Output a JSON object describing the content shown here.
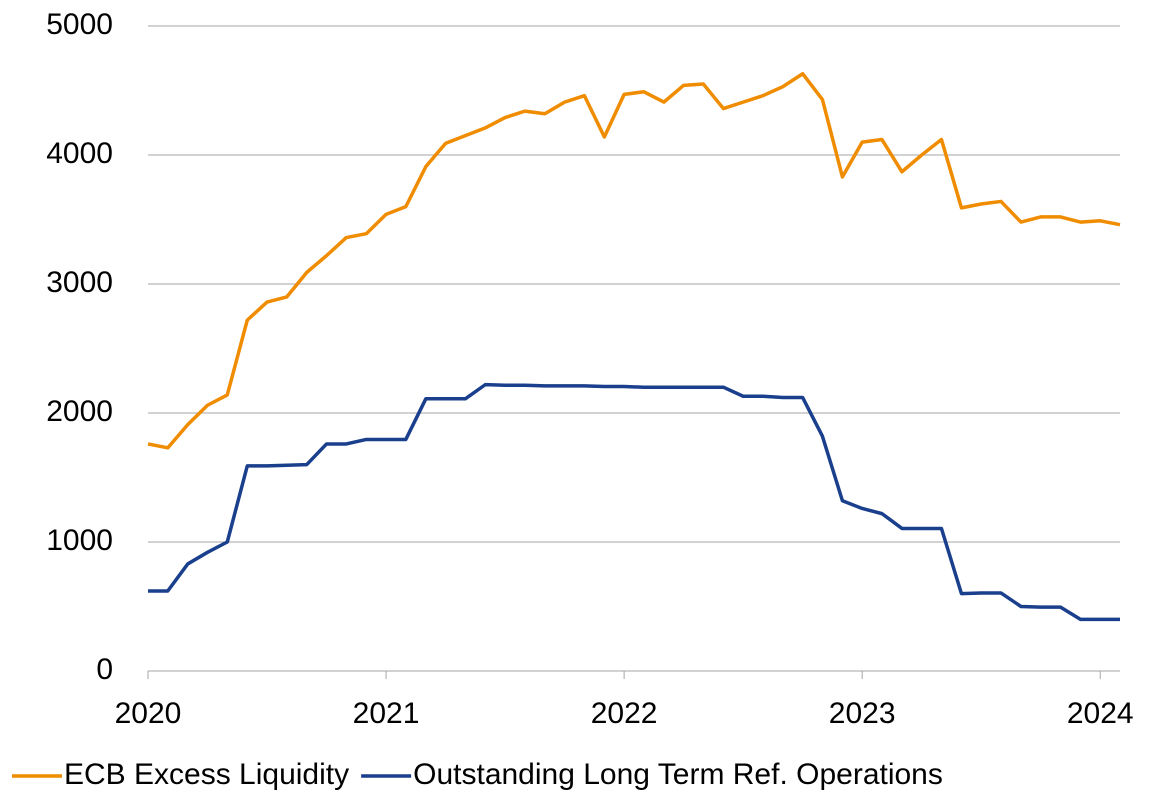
{
  "chart_data": {
    "type": "line",
    "x": [
      2020,
      2020.083,
      2020.167,
      2020.25,
      2020.333,
      2020.417,
      2020.5,
      2020.583,
      2020.667,
      2020.75,
      2020.833,
      2020.917,
      2021,
      2021.083,
      2021.167,
      2021.25,
      2021.333,
      2021.417,
      2021.5,
      2021.583,
      2021.667,
      2021.75,
      2021.833,
      2021.917,
      2022,
      2022.083,
      2022.167,
      2022.25,
      2022.333,
      2022.417,
      2022.5,
      2022.583,
      2022.667,
      2022.75,
      2022.833,
      2022.917,
      2023,
      2023.083,
      2023.167,
      2023.25,
      2023.333,
      2023.417,
      2023.5,
      2023.583,
      2023.667,
      2023.75,
      2023.833,
      2023.917,
      2024,
      2024.083
    ],
    "series": [
      {
        "name": "ECB Excess Liquidity",
        "color": "#f08c00",
        "values": [
          1760,
          1730,
          1910,
          2060,
          2140,
          2720,
          2860,
          2900,
          3090,
          3220,
          3360,
          3390,
          3540,
          3600,
          3910,
          4090,
          4150,
          4210,
          4290,
          4340,
          4320,
          4410,
          4460,
          4140,
          4470,
          4490,
          4410,
          4540,
          4550,
          4360,
          4410,
          4460,
          4530,
          4630,
          4430,
          3830,
          4100,
          4120,
          3870,
          4000,
          4120,
          3590,
          3620,
          3640,
          3480,
          3520,
          3520,
          3480,
          3490,
          3460
        ]
      },
      {
        "name": "Outstanding Long Term Ref. Operations",
        "color": "#1a3f8c",
        "values": [
          620,
          620,
          830,
          920,
          1000,
          1590,
          1590,
          1595,
          1600,
          1760,
          1760,
          1795,
          1795,
          1795,
          2110,
          2110,
          2110,
          2220,
          2215,
          2215,
          2210,
          2210,
          2210,
          2205,
          2205,
          2200,
          2200,
          2200,
          2200,
          2200,
          2130,
          2130,
          2120,
          2120,
          1820,
          1320,
          1260,
          1220,
          1105,
          1105,
          1105,
          600,
          605,
          605,
          500,
          495,
          495,
          400,
          400,
          400
        ]
      }
    ],
    "xlim": [
      2020,
      2024.083
    ],
    "xticks": [
      2020,
      2021,
      2022,
      2023,
      2024
    ],
    "ylim": [
      0,
      5000
    ],
    "yticks": [
      0,
      1000,
      2000,
      3000,
      4000,
      5000
    ],
    "grid": true,
    "legend": "bottom"
  }
}
